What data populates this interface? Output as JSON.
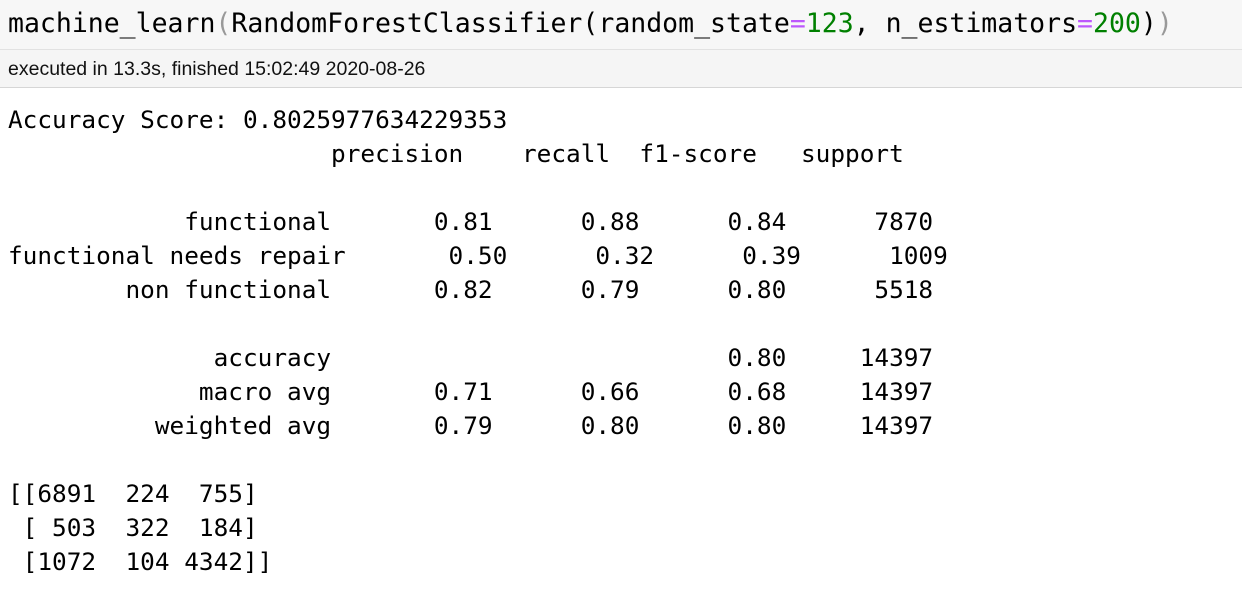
{
  "input": {
    "fn_name": "machine_learn",
    "model_name": "RandomForestClassifier",
    "arg1_name": "random_state",
    "arg1_value": "123",
    "arg2_name": "n_estimators",
    "arg2_value": "200"
  },
  "execution": {
    "status_text": "executed in 13.3s, finished 15:02:49 2020-08-26"
  },
  "output": {
    "lines": [
      "Accuracy Score: 0.8025977634229353",
      "                      precision    recall  f1-score   support",
      "",
      "            functional       0.81      0.88      0.84      7870",
      "functional needs repair       0.50      0.32      0.39      1009",
      "        non functional       0.82      0.79      0.80      5518",
      "",
      "              accuracy                           0.80     14397",
      "             macro avg       0.71      0.66      0.68     14397",
      "          weighted avg       0.79      0.80      0.80     14397",
      "",
      "[[6891  224  755]",
      " [ 503  322  184]",
      " [1072  104 4342]]"
    ]
  }
}
